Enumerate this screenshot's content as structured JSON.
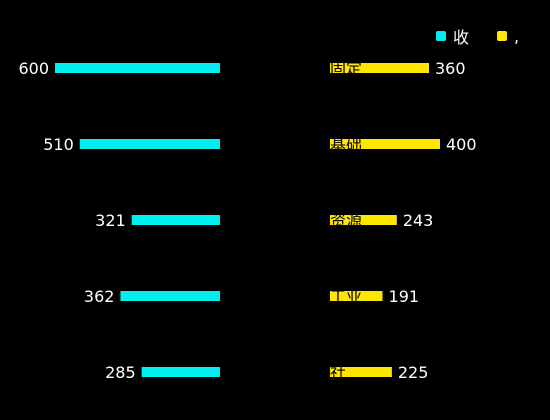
{
  "chart_data": {
    "type": "bar",
    "orientation": "horizontal-butterfly",
    "categories": [
      "固定",
      "基础",
      "资源",
      "工业",
      "社"
    ],
    "series": [
      {
        "name": "收",
        "color": "#00f0f0",
        "values": [
          600,
          510,
          321,
          362,
          285
        ]
      },
      {
        "name": ",",
        "color": "#ffe600",
        "values": [
          360,
          400,
          243,
          191,
          225
        ]
      }
    ],
    "xlim": [
      0,
      600
    ],
    "grid": false,
    "legend_position": "top-right"
  }
}
